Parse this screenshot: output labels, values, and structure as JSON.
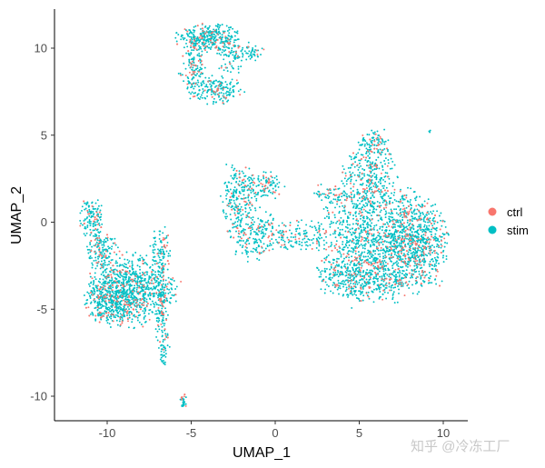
{
  "chart_data": {
    "type": "scatter",
    "xlabel": "UMAP_1",
    "ylabel": "UMAP_2",
    "xlim": [
      -13.1,
      11.5
    ],
    "ylim": [
      -11.4,
      12.2
    ],
    "xticks": [
      -10,
      -5,
      0,
      5,
      10
    ],
    "yticks": [
      -10,
      -5,
      0,
      5,
      10
    ],
    "grid": false,
    "legend": {
      "placement": "right",
      "entries": [
        "ctrl",
        "stim"
      ]
    },
    "series": [
      {
        "name": "ctrl",
        "color": "#F8766D"
      },
      {
        "name": "stim",
        "color": "#00BFC4"
      }
    ],
    "clusters": [
      {
        "x": -4.0,
        "y": 10.6,
        "sx": 0.9,
        "sy": 0.4,
        "n": 300
      },
      {
        "x": -4.9,
        "y": 9.0,
        "sx": 0.35,
        "sy": 0.9,
        "n": 160
      },
      {
        "x": -3.5,
        "y": 7.6,
        "sx": 0.8,
        "sy": 0.4,
        "n": 170
      },
      {
        "x": -2.6,
        "y": 9.6,
        "sx": 0.5,
        "sy": 0.5,
        "n": 90
      },
      {
        "x": -1.3,
        "y": 9.8,
        "sx": 0.3,
        "sy": 0.25,
        "n": 40
      },
      {
        "x": -10.9,
        "y": 0.2,
        "sx": 0.35,
        "sy": 0.6,
        "n": 120
      },
      {
        "x": -10.3,
        "y": -1.6,
        "sx": 0.5,
        "sy": 0.6,
        "n": 140
      },
      {
        "x": -6.8,
        "y": -1.5,
        "sx": 0.3,
        "sy": 0.6,
        "n": 80
      },
      {
        "x": -8.6,
        "y": -3.9,
        "sx": 1.3,
        "sy": 1.0,
        "n": 900
      },
      {
        "x": -9.8,
        "y": -4.6,
        "sx": 0.7,
        "sy": 0.7,
        "n": 250
      },
      {
        "x": -6.8,
        "y": -5.0,
        "sx": 0.2,
        "sy": 1.2,
        "n": 110
      },
      {
        "x": -6.6,
        "y": -7.3,
        "sx": 0.15,
        "sy": 0.5,
        "n": 40
      },
      {
        "x": -5.45,
        "y": -10.25,
        "sx": 0.1,
        "sy": 0.2,
        "n": 25
      },
      {
        "x": -2.2,
        "y": 1.4,
        "sx": 0.5,
        "sy": 1.0,
        "n": 220
      },
      {
        "x": -0.6,
        "y": 2.1,
        "sx": 0.6,
        "sy": 0.4,
        "n": 110
      },
      {
        "x": -1.2,
        "y": -0.8,
        "sx": 0.8,
        "sy": 0.7,
        "n": 200
      },
      {
        "x": 1.5,
        "y": -0.8,
        "sx": 0.8,
        "sy": 0.5,
        "n": 120
      },
      {
        "x": 3.3,
        "y": 1.6,
        "sx": 0.6,
        "sy": 0.3,
        "n": 60
      },
      {
        "x": 6.3,
        "y": -1.2,
        "sx": 1.9,
        "sy": 1.6,
        "n": 1400
      },
      {
        "x": 8.4,
        "y": -1.3,
        "sx": 0.9,
        "sy": 1.3,
        "n": 400
      },
      {
        "x": 5.0,
        "y": -3.2,
        "sx": 1.3,
        "sy": 0.6,
        "n": 300
      },
      {
        "x": 5.6,
        "y": 2.7,
        "sx": 0.8,
        "sy": 1.0,
        "n": 300
      },
      {
        "x": 6.0,
        "y": 4.6,
        "sx": 0.5,
        "sy": 0.4,
        "n": 80
      },
      {
        "x": 9.2,
        "y": 5.2,
        "sx": 0.05,
        "sy": 0.05,
        "n": 3
      }
    ],
    "ctrl_fraction": 0.15
  },
  "watermark": "知乎 @冷冻工厂"
}
